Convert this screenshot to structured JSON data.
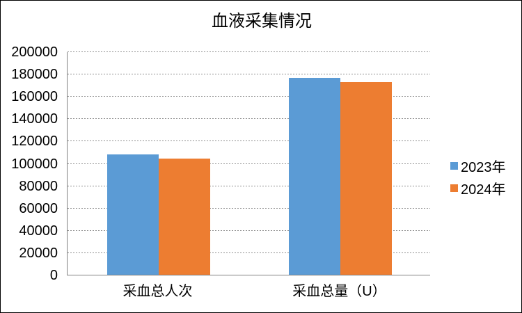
{
  "chart_data": {
    "type": "bar",
    "title": "血液采集情况",
    "categories": [
      "采血总人次",
      "采血总量（U）"
    ],
    "series": [
      {
        "name": "2023年",
        "color": "#5B9BD5",
        "values": [
          107500,
          176500
        ]
      },
      {
        "name": "2024年",
        "color": "#ED7D31",
        "values": [
          104000,
          172500
        ]
      }
    ],
    "xlabel": "",
    "ylabel": "",
    "ylim": [
      0,
      200000
    ],
    "yticks": [
      0,
      20000,
      40000,
      60000,
      80000,
      100000,
      120000,
      140000,
      160000,
      180000,
      200000
    ],
    "grid": true,
    "grid_style": "dashed",
    "legend_position": "right",
    "colors": {
      "axis": "#7f7f7f",
      "gridline": "#8f8f8f",
      "text": "#000000",
      "background": "#ffffff",
      "border": "#000000"
    }
  }
}
